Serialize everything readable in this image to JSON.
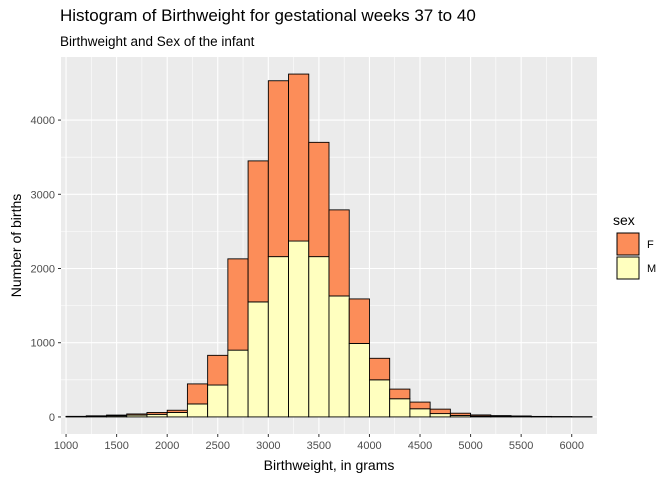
{
  "chart_data": {
    "type": "bar",
    "stacked": true,
    "title": "Histogram of Birthweight for gestational weeks 37 to 40",
    "subtitle": "Birthweight and Sex of the infant",
    "xlabel": "Birthweight, in grams",
    "ylabel": "Number of births",
    "bin_width": 200,
    "bin_centers": [
      1100,
      1300,
      1500,
      1700,
      1900,
      2100,
      2300,
      2500,
      2700,
      2900,
      3100,
      3300,
      3500,
      3700,
      3900,
      4100,
      4300,
      4500,
      4700,
      4900,
      5100,
      5300,
      5500,
      5700,
      5900,
      6100
    ],
    "series": [
      {
        "name": "F",
        "color": "#fc8d59",
        "values": [
          3,
          5,
          10,
          15,
          25,
          30,
          270,
          400,
          1230,
          1900,
          2370,
          2250,
          1540,
          1160,
          600,
          290,
          130,
          90,
          60,
          30,
          15,
          10,
          8,
          4,
          3,
          2
        ]
      },
      {
        "name": "M",
        "color": "#ffffbf",
        "values": [
          5,
          10,
          15,
          25,
          35,
          60,
          175,
          430,
          900,
          1550,
          2160,
          2370,
          2160,
          1630,
          990,
          500,
          245,
          110,
          45,
          20,
          12,
          8,
          5,
          3,
          2,
          1
        ]
      }
    ],
    "xlim": [
      950,
      6250
    ],
    "ylim": [
      -230,
      4850
    ],
    "xticks": [
      1000,
      1500,
      2000,
      2500,
      3000,
      3500,
      4000,
      4500,
      5000,
      5500,
      6000
    ],
    "xtick_labels": [
      "1000",
      "1500",
      "2000",
      "2500",
      "3000",
      "3500",
      "4000",
      "4500",
      "5000",
      "5500",
      "6000"
    ],
    "yticks": [
      0,
      1000,
      2000,
      3000,
      4000
    ],
    "ytick_labels": [
      "0",
      "1000",
      "2000",
      "3000",
      "4000"
    ],
    "grid": true,
    "legend": {
      "title": "sex",
      "position": "right"
    },
    "panel_background": "#ebebeb",
    "grid_color": "#ffffff",
    "bar_outline": "#000000"
  }
}
